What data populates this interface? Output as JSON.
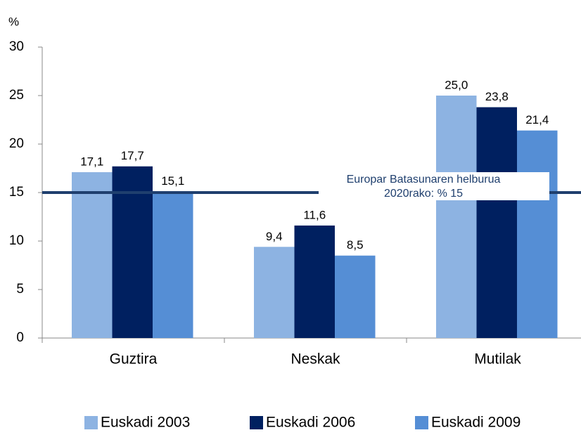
{
  "chart_data": {
    "type": "bar",
    "y_label": "%",
    "categories": [
      "Guztira",
      "Neskak",
      "Mutilak"
    ],
    "series": [
      {
        "name": "Euskadi 2003",
        "color": "#8db3e2",
        "values": [
          17.1,
          9.4,
          25.0
        ],
        "value_labels": [
          "17,1",
          "9,4",
          "25,0"
        ]
      },
      {
        "name": "Euskadi 2006",
        "color": "#002060",
        "values": [
          17.7,
          11.6,
          23.8
        ],
        "value_labels": [
          "17,7",
          "11,6",
          "23,8"
        ]
      },
      {
        "name": "Euskadi 2009",
        "color": "#558ed5",
        "values": [
          15.1,
          8.5,
          21.4
        ],
        "value_labels": [
          "15,1",
          "8,5",
          "21,4"
        ]
      }
    ],
    "ylim": [
      0,
      30
    ],
    "yticks": [
      0,
      5,
      10,
      15,
      20,
      25,
      30
    ],
    "reference_line": {
      "value": 15,
      "color": "#1f3f6e",
      "label": [
        "Europar Batasunaren helburua",
        "2020rako: % 15"
      ]
    },
    "legend": "bottom"
  }
}
